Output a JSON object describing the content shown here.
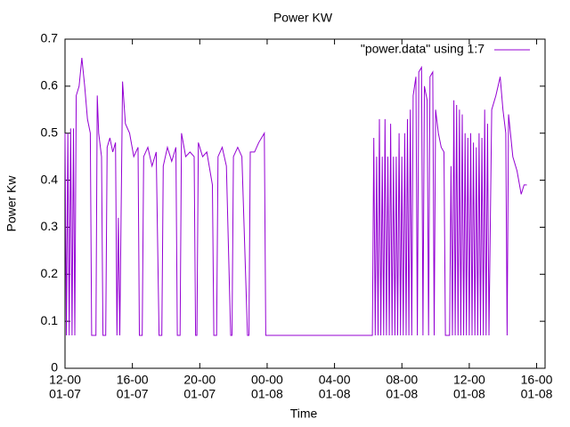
{
  "chart_data": {
    "type": "line",
    "title": "Power KW",
    "x_label": "Time",
    "y_label": "Power Kw",
    "xlim": [
      "01-07 12:00",
      "01-08 16:30"
    ],
    "xticks": [
      {
        "value": "01-07 12:00",
        "label": "12-00",
        "date": "01-07"
      },
      {
        "value": "01-07 16:00",
        "label": "16-00",
        "date": "01-07"
      },
      {
        "value": "01-07 20:00",
        "label": "20-00",
        "date": "01-07"
      },
      {
        "value": "01-08 00:00",
        "label": "00-00",
        "date": "01-08"
      },
      {
        "value": "01-08 04:00",
        "label": "04-00",
        "date": "01-08"
      },
      {
        "value": "01-08 08:00",
        "label": "08-00",
        "date": "01-08"
      },
      {
        "value": "01-08 12:00",
        "label": "12-00",
        "date": "01-08"
      },
      {
        "value": "01-08 16:00",
        "label": "16-00",
        "date": "01-08"
      }
    ],
    "ylim": [
      0,
      0.7
    ],
    "yticks": [
      0,
      0.1,
      0.2,
      0.3,
      0.4,
      0.5,
      0.6,
      0.7
    ],
    "legend": "top-right",
    "x": [
      "01-07 12:00",
      "01-07 12:05",
      "01-07 12:10",
      "01-07 12:15",
      "01-07 12:20",
      "01-07 12:25",
      "01-07 12:30",
      "01-07 12:35",
      "01-07 12:40",
      "01-07 12:50",
      "01-07 13:00",
      "01-07 13:10",
      "01-07 13:20",
      "01-07 13:30",
      "01-07 13:35",
      "01-07 13:50",
      "01-07 13:55",
      "01-07 14:00",
      "01-07 14:10",
      "01-07 14:15",
      "01-07 14:25",
      "01-07 14:30",
      "01-07 14:40",
      "01-07 14:50",
      "01-07 15:00",
      "01-07 15:05",
      "01-07 15:10",
      "01-07 15:15",
      "01-07 15:25",
      "01-07 15:35",
      "01-07 15:50",
      "01-07 16:05",
      "01-07 16:20",
      "01-07 16:25",
      "01-07 16:35",
      "01-07 16:40",
      "01-07 16:55",
      "01-07 17:10",
      "01-07 17:25",
      "01-07 17:35",
      "01-07 17:45",
      "01-07 17:50",
      "01-07 18:05",
      "01-07 18:20",
      "01-07 18:35",
      "01-07 18:40",
      "01-07 18:50",
      "01-07 18:55",
      "01-07 19:10",
      "01-07 19:25",
      "01-07 19:40",
      "01-07 19:45",
      "01-07 19:50",
      "01-07 19:55",
      "01-07 20:10",
      "01-07 20:25",
      "01-07 20:45",
      "01-07 20:50",
      "01-07 21:00",
      "01-07 21:05",
      "01-07 21:20",
      "01-07 21:35",
      "01-07 21:50",
      "01-07 21:55",
      "01-07 22:00",
      "01-07 22:15",
      "01-07 22:30",
      "01-07 22:50",
      "01-07 22:55",
      "01-07 23:00",
      "01-07 23:15",
      "01-07 23:30",
      "01-07 23:50",
      "01-07 23:55",
      "01-08 06:15",
      "01-08 06:20",
      "01-08 06:25",
      "01-08 06:30",
      "01-08 06:35",
      "01-08 06:40",
      "01-08 06:45",
      "01-08 06:50",
      "01-08 06:55",
      "01-08 07:00",
      "01-08 07:05",
      "01-08 07:10",
      "01-08 07:15",
      "01-08 07:20",
      "01-08 07:25",
      "01-08 07:30",
      "01-08 07:35",
      "01-08 07:40",
      "01-08 07:45",
      "01-08 07:50",
      "01-08 07:55",
      "01-08 08:00",
      "01-08 08:05",
      "01-08 08:10",
      "01-08 08:15",
      "01-08 08:20",
      "01-08 08:25",
      "01-08 08:30",
      "01-08 08:35",
      "01-08 08:40",
      "01-08 08:50",
      "01-08 08:55",
      "01-08 09:00",
      "01-08 09:10",
      "01-08 09:15",
      "01-08 09:20",
      "01-08 09:30",
      "01-08 09:35",
      "01-08 09:40",
      "01-08 09:50",
      "01-08 09:55",
      "01-08 10:00",
      "01-08 10:10",
      "01-08 10:20",
      "01-08 10:30",
      "01-08 10:35",
      "01-08 10:50",
      "01-08 10:55",
      "01-08 11:00",
      "01-08 11:05",
      "01-08 11:10",
      "01-08 11:15",
      "01-08 11:20",
      "01-08 11:25",
      "01-08 11:30",
      "01-08 11:35",
      "01-08 11:40",
      "01-08 11:45",
      "01-08 11:50",
      "01-08 11:55",
      "01-08 12:00",
      "01-08 12:05",
      "01-08 12:10",
      "01-08 12:15",
      "01-08 12:20",
      "01-08 12:25",
      "01-08 12:30",
      "01-08 12:35",
      "01-08 12:40",
      "01-08 12:45",
      "01-08 12:50",
      "01-08 12:55",
      "01-08 13:00",
      "01-08 13:05",
      "01-08 13:10",
      "01-08 13:20",
      "01-08 13:35",
      "01-08 13:50",
      "01-08 14:00",
      "01-08 14:10",
      "01-08 14:15",
      "01-08 14:20",
      "01-08 14:35",
      "01-08 14:50",
      "01-08 15:05",
      "01-08 15:15",
      "01-08 15:25"
    ],
    "series": [
      {
        "name": "\"power.data\" using 1:7",
        "color": "#9400d3",
        "values": [
          0.5,
          0.07,
          0.5,
          0.07,
          0.51,
          0.07,
          0.51,
          0.07,
          0.58,
          0.6,
          0.66,
          0.6,
          0.53,
          0.5,
          0.07,
          0.07,
          0.58,
          0.5,
          0.45,
          0.07,
          0.07,
          0.47,
          0.49,
          0.46,
          0.48,
          0.07,
          0.32,
          0.07,
          0.61,
          0.52,
          0.5,
          0.45,
          0.47,
          0.07,
          0.07,
          0.45,
          0.47,
          0.43,
          0.46,
          0.07,
          0.07,
          0.43,
          0.47,
          0.44,
          0.47,
          0.07,
          0.07,
          0.5,
          0.45,
          0.46,
          0.45,
          0.07,
          0.07,
          0.48,
          0.45,
          0.46,
          0.39,
          0.07,
          0.07,
          0.45,
          0.47,
          0.43,
          0.07,
          0.07,
          0.45,
          0.47,
          0.45,
          0.07,
          0.07,
          0.46,
          0.46,
          0.48,
          0.5,
          0.07,
          0.07,
          0.49,
          0.07,
          0.45,
          0.07,
          0.53,
          0.07,
          0.45,
          0.07,
          0.53,
          0.07,
          0.45,
          0.07,
          0.52,
          0.07,
          0.45,
          0.07,
          0.45,
          0.07,
          0.5,
          0.07,
          0.45,
          0.07,
          0.5,
          0.07,
          0.53,
          0.07,
          0.55,
          0.07,
          0.58,
          0.62,
          0.07,
          0.63,
          0.64,
          0.07,
          0.6,
          0.57,
          0.07,
          0.62,
          0.63,
          0.07,
          0.55,
          0.5,
          0.47,
          0.46,
          0.07,
          0.07,
          0.43,
          0.07,
          0.57,
          0.07,
          0.56,
          0.07,
          0.55,
          0.07,
          0.54,
          0.07,
          0.5,
          0.07,
          0.49,
          0.07,
          0.5,
          0.07,
          0.48,
          0.07,
          0.47,
          0.07,
          0.5,
          0.07,
          0.49,
          0.07,
          0.55,
          0.07,
          0.52,
          0.07,
          0.55,
          0.58,
          0.62,
          0.55,
          0.5,
          0.07,
          0.54,
          0.45,
          0.42,
          0.37,
          0.39,
          0.39
        ]
      }
    ]
  }
}
